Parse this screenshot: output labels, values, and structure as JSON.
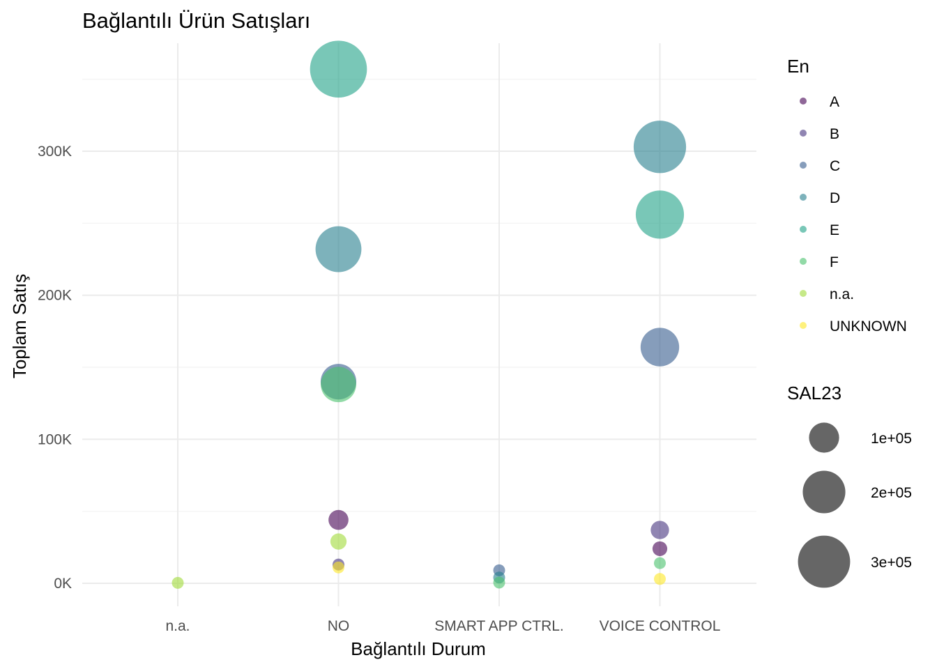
{
  "chart_data": {
    "type": "scatter",
    "title": "Bağlantılı Ürün Satışları",
    "xlabel": "Bağlantılı Durum",
    "ylabel": "Toplam Satış",
    "categories": [
      "n.a.",
      "NO",
      "SMART APP CTRL.",
      "VOICE CONTROL"
    ],
    "y_ticks": [
      0,
      100000,
      200000,
      300000
    ],
    "y_tick_labels": [
      "0K",
      "100K",
      "200K",
      "300K"
    ],
    "ylim": [
      -16000,
      375000
    ],
    "grid": true,
    "color_legend": {
      "title": "En",
      "entries": [
        {
          "label": "A",
          "color": "#440154"
        },
        {
          "label": "B",
          "color": "#46337e"
        },
        {
          "label": "C",
          "color": "#365c8d"
        },
        {
          "label": "D",
          "color": "#277f8e"
        },
        {
          "label": "E",
          "color": "#1fa187"
        },
        {
          "label": "F",
          "color": "#4ac16d"
        },
        {
          "label": "n.a.",
          "color": "#a0da39"
        },
        {
          "label": "UNKNOWN",
          "color": "#fde725"
        }
      ]
    },
    "size_legend": {
      "title": "SAL23",
      "entries": [
        {
          "label": "1e+05",
          "value": 100000
        },
        {
          "label": "2e+05",
          "value": 200000
        },
        {
          "label": "3e+05",
          "value": 300000
        }
      ]
    },
    "size_domain": [
      0,
      360000
    ],
    "points": [
      {
        "x": "n.a.",
        "y": 300,
        "size": 300,
        "group": "n.a."
      },
      {
        "x": "NO",
        "y": 357000,
        "size": 357000,
        "group": "E"
      },
      {
        "x": "NO",
        "y": 232000,
        "size": 232000,
        "group": "D"
      },
      {
        "x": "NO",
        "y": 140000,
        "size": 140000,
        "group": "C"
      },
      {
        "x": "NO",
        "y": 138000,
        "size": 138000,
        "group": "F"
      },
      {
        "x": "NO",
        "y": 44000,
        "size": 44000,
        "group": "A"
      },
      {
        "x": "NO",
        "y": 29000,
        "size": 29000,
        "group": "n.a."
      },
      {
        "x": "NO",
        "y": 13000,
        "size": 13000,
        "group": "B"
      },
      {
        "x": "NO",
        "y": 11000,
        "size": 11000,
        "group": "UNKNOWN"
      },
      {
        "x": "SMART APP CTRL.",
        "y": 9000,
        "size": 9000,
        "group": "C"
      },
      {
        "x": "SMART APP CTRL.",
        "y": 4000,
        "size": 4000,
        "group": "D"
      },
      {
        "x": "SMART APP CTRL.",
        "y": 500,
        "size": 500,
        "group": "F"
      },
      {
        "x": "VOICE CONTROL",
        "y": 303000,
        "size": 303000,
        "group": "D"
      },
      {
        "x": "VOICE CONTROL",
        "y": 256000,
        "size": 256000,
        "group": "E"
      },
      {
        "x": "VOICE CONTROL",
        "y": 164000,
        "size": 164000,
        "group": "C"
      },
      {
        "x": "VOICE CONTROL",
        "y": 37000,
        "size": 37000,
        "group": "B"
      },
      {
        "x": "VOICE CONTROL",
        "y": 24000,
        "size": 24000,
        "group": "A"
      },
      {
        "x": "VOICE CONTROL",
        "y": 14000,
        "size": 14000,
        "group": "F"
      },
      {
        "x": "VOICE CONTROL",
        "y": 3000,
        "size": 3000,
        "group": "UNKNOWN"
      }
    ]
  }
}
